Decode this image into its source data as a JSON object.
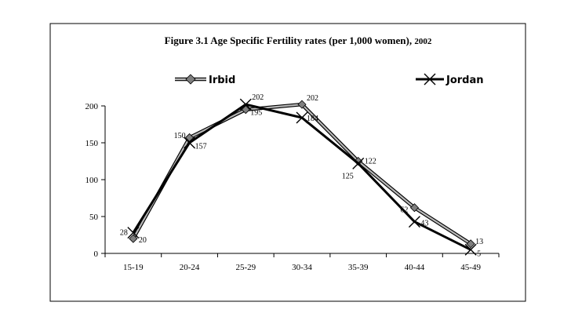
{
  "chart_data": {
    "type": "line",
    "title": "Figure 3.1 Age Specific Fertility rates (per 1,000 women), 2002",
    "title_main": "Figure 3.1 Age Specific Fertility rates (per 1,000 women),",
    "title_year": "2002",
    "xlabel": "",
    "ylabel": "",
    "categories": [
      "15-19",
      "20-24",
      "25-29",
      "30-34",
      "35-39",
      "40-44",
      "45-49"
    ],
    "ylim": [
      0,
      200
    ],
    "yticks": [
      0,
      50,
      100,
      150,
      200
    ],
    "grid": false,
    "legend_position": "top",
    "series": [
      {
        "name": "Irbid",
        "marker": "diamond",
        "color": "#7f7f7f",
        "values": [
          20,
          157,
          195,
          202,
          125,
          62,
          13
        ],
        "labels": [
          "20",
          "157",
          "195",
          "202",
          "125",
          "62",
          "13"
        ]
      },
      {
        "name": "Jordan",
        "marker": "x",
        "color": "#000000",
        "values": [
          28,
          150,
          202,
          184,
          122,
          43,
          5
        ],
        "labels": [
          "28",
          "150",
          "202",
          "184",
          "122",
          "43",
          "5"
        ]
      }
    ]
  }
}
